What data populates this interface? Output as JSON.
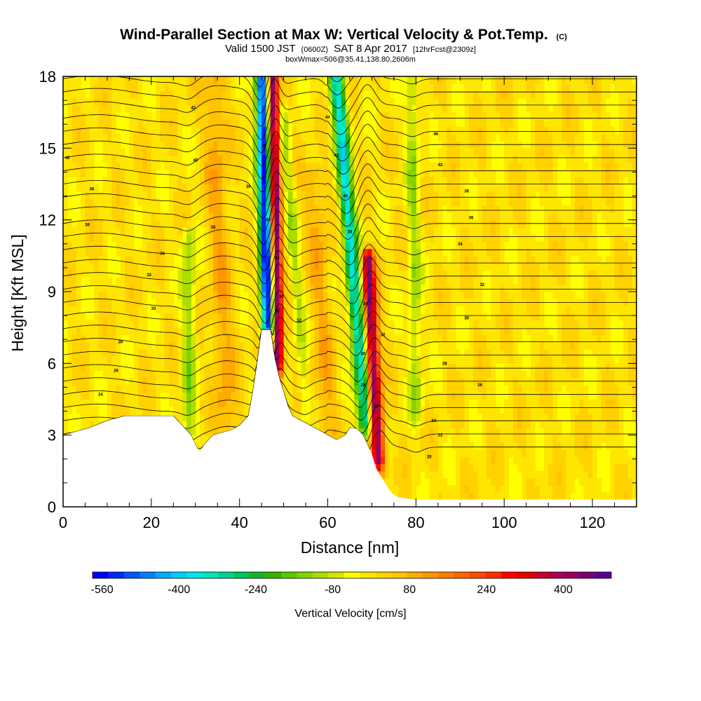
{
  "header": {
    "title_main": "Wind-Parallel Section at Max W: Vertical Velocity & Pot.Temp.",
    "title_units": "(C)",
    "subtitle_valid": "Valid 1500 JST",
    "subtitle_utc": "(0600Z)",
    "subtitle_date": "SAT 8 Apr 2017",
    "subtitle_fcst": "[12hrFcst@2309z]",
    "box_info": "boxWmax=506@35.41,138.80,2606m"
  },
  "chart_data": {
    "type": "heatmap",
    "title": "Wind-Parallel Section at Max W: Vertical Velocity & Pot.Temp.",
    "xlabel": "Distance [nm]",
    "ylabel": "Height [Kft MSL]",
    "xlim": [
      0,
      130
    ],
    "ylim": [
      0,
      18
    ],
    "x_ticks": [
      0,
      20,
      40,
      60,
      80,
      100,
      120
    ],
    "y_ticks": [
      0,
      3,
      6,
      9,
      12,
      15,
      18
    ],
    "terrain": {
      "x": [
        0,
        2,
        6,
        10,
        14,
        20,
        25,
        27,
        29,
        30,
        31,
        32,
        34,
        36,
        38,
        40,
        42,
        43,
        44,
        45,
        46,
        47,
        48,
        49,
        50,
        51,
        52,
        54,
        56,
        58,
        60,
        62,
        64,
        65,
        66,
        67,
        68,
        69,
        70,
        71,
        72,
        73,
        74,
        75,
        76,
        78,
        80,
        85,
        100,
        130
      ],
      "height_kft": [
        3.0,
        3.1,
        3.3,
        3.6,
        3.8,
        3.8,
        3.8,
        3.4,
        3.0,
        2.6,
        2.3,
        2.6,
        3.0,
        3.1,
        3.2,
        3.4,
        3.8,
        4.8,
        6.0,
        7.4,
        7.4,
        7.4,
        6.2,
        5.4,
        4.8,
        4.2,
        3.8,
        3.6,
        3.4,
        3.2,
        3.0,
        2.8,
        3.0,
        3.3,
        3.3,
        3.2,
        3.0,
        2.6,
        2.2,
        1.6,
        1.3,
        1.0,
        0.7,
        0.5,
        0.4,
        0.35,
        0.3,
        0.3,
        0.3,
        0.3
      ]
    },
    "velocity_features": [
      {
        "x_surface": 46.5,
        "x_top": 45,
        "z_bottom": 7.5,
        "z_top": 18,
        "w_cm_s": -560,
        "half_width_nm": 1.5
      },
      {
        "x_surface": 48.8,
        "x_top": 47.5,
        "z_bottom": 6.0,
        "z_top": 18,
        "w_cm_s": 480,
        "half_width_nm": 1.2
      },
      {
        "x_surface": 68.5,
        "x_top": 62,
        "z_bottom": 3.5,
        "z_top": 18,
        "w_cm_s": -360,
        "half_width_nm": 1.6
      },
      {
        "x_surface": 71.5,
        "x_top": 69,
        "z_bottom": 2.0,
        "z_top": 10.5,
        "w_cm_s": 440,
        "half_width_nm": 1.5
      },
      {
        "x_surface": 28.5,
        "x_top": 28.5,
        "z_bottom": 3.0,
        "z_top": 11.5,
        "w_cm_s": -120,
        "half_width_nm": 1.5
      },
      {
        "x_surface": 55,
        "x_top": 50,
        "z_bottom": 4.0,
        "z_top": 16.5,
        "w_cm_s": -90,
        "half_width_nm": 1.2
      },
      {
        "x_surface": 80,
        "x_top": 79,
        "z_bottom": 4.0,
        "z_top": 18,
        "w_cm_s": -110,
        "half_width_nm": 1.4
      },
      {
        "x_surface": 37,
        "x_top": 34,
        "z_bottom": 3.5,
        "z_top": 18,
        "w_cm_s": 90,
        "half_width_nm": 2.5
      },
      {
        "x_surface": 60,
        "x_top": 57,
        "z_bottom": 3.2,
        "z_top": 14,
        "w_cm_s": 80,
        "half_width_nm": 2.5
      }
    ],
    "contour_labels": [
      {
        "x": 1.0,
        "z": 14.6,
        "text": "40"
      },
      {
        "x": 6.5,
        "z": 13.3,
        "text": "38"
      },
      {
        "x": 5.5,
        "z": 11.8,
        "text": "36"
      },
      {
        "x": 22.5,
        "z": 10.6,
        "text": "34"
      },
      {
        "x": 19.5,
        "z": 9.7,
        "text": "32"
      },
      {
        "x": 20.5,
        "z": 8.3,
        "text": "30"
      },
      {
        "x": 13,
        "z": 6.9,
        "text": "28"
      },
      {
        "x": 12,
        "z": 5.7,
        "text": "26"
      },
      {
        "x": 8.5,
        "z": 4.7,
        "text": "24"
      },
      {
        "x": 29.5,
        "z": 16.7,
        "text": "42"
      },
      {
        "x": 30,
        "z": 14.5,
        "text": "40"
      },
      {
        "x": 34,
        "z": 11.7,
        "text": "38"
      },
      {
        "x": 42,
        "z": 13.4,
        "text": "36"
      },
      {
        "x": 45.5,
        "z": 15.1,
        "text": "48"
      },
      {
        "x": 46.5,
        "z": 12.0,
        "text": "40"
      },
      {
        "x": 48.5,
        "z": 10.4,
        "text": "34"
      },
      {
        "x": 49.5,
        "z": 8.8,
        "text": "30"
      },
      {
        "x": 48.5,
        "z": 8.2,
        "text": "28"
      },
      {
        "x": 53.5,
        "z": 7.8,
        "text": "32"
      },
      {
        "x": 60,
        "z": 16.3,
        "text": "44"
      },
      {
        "x": 62,
        "z": 14.7,
        "text": "42"
      },
      {
        "x": 64,
        "z": 13.0,
        "text": "40"
      },
      {
        "x": 65,
        "z": 11.5,
        "text": "38"
      },
      {
        "x": 68.5,
        "z": 8.5,
        "text": "34"
      },
      {
        "x": 68,
        "z": 6.4,
        "text": "30"
      },
      {
        "x": 68,
        "z": 5.1,
        "text": "28"
      },
      {
        "x": 71,
        "z": 4.2,
        "text": "26"
      },
      {
        "x": 72.5,
        "z": 7.2,
        "text": "32"
      },
      {
        "x": 84.5,
        "z": 15.6,
        "text": "46"
      },
      {
        "x": 85.5,
        "z": 14.3,
        "text": "42"
      },
      {
        "x": 91.5,
        "z": 13.2,
        "text": "38"
      },
      {
        "x": 92.5,
        "z": 12.1,
        "text": "36"
      },
      {
        "x": 90,
        "z": 11.0,
        "text": "34"
      },
      {
        "x": 95,
        "z": 9.3,
        "text": "32"
      },
      {
        "x": 91.5,
        "z": 7.9,
        "text": "30"
      },
      {
        "x": 86.5,
        "z": 6.0,
        "text": "28"
      },
      {
        "x": 94.5,
        "z": 5.1,
        "text": "26"
      },
      {
        "x": 84,
        "z": 3.6,
        "text": "24"
      },
      {
        "x": 85.5,
        "z": 3.0,
        "text": "22"
      },
      {
        "x": 83,
        "z": 2.1,
        "text": "20"
      }
    ],
    "colorbar": {
      "label": "Vertical Velocity [cm/s]",
      "tick_labels": [
        "-560",
        "-400",
        "-240",
        "-80",
        "80",
        "240",
        "400"
      ],
      "tick_values": [
        -560,
        -400,
        -240,
        -80,
        80,
        240,
        400
      ],
      "range": [
        -580,
        500
      ],
      "colors": [
        "#0000ff",
        "#0028ff",
        "#0055ff",
        "#0080ff",
        "#00aaff",
        "#00ccff",
        "#00e6e6",
        "#00e6b4",
        "#00d28c",
        "#00c35a",
        "#14b428",
        "#32b400",
        "#5ac800",
        "#82d200",
        "#aadc00",
        "#d2e600",
        "#ffff00",
        "#ffe600",
        "#ffd200",
        "#ffc300",
        "#ffaa00",
        "#ff9600",
        "#ff7d00",
        "#ff6400",
        "#ff4b00",
        "#ff2d00",
        "#ff0000",
        "#e10000",
        "#c80028",
        "#aa0050",
        "#960064",
        "#780078",
        "#5a0096"
      ]
    }
  }
}
